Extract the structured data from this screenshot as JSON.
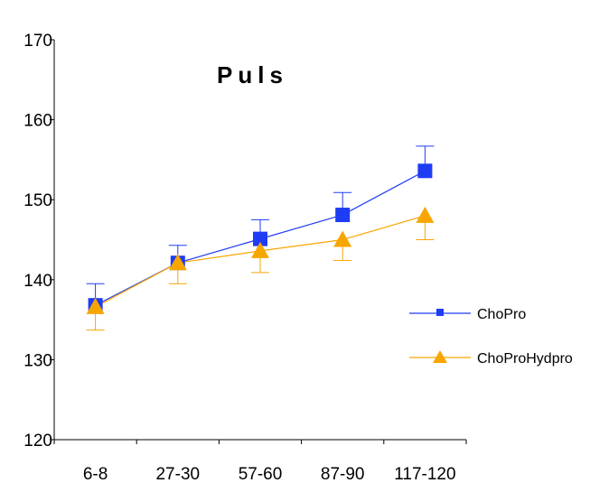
{
  "chart_data": {
    "type": "line",
    "title": "Puls",
    "xlabel": "",
    "ylabel": "",
    "categories": [
      "6-8",
      "27-30",
      "57-60",
      "87-90",
      "117-120"
    ],
    "ylim": [
      120,
      170
    ],
    "yticks": [
      120,
      130,
      140,
      150,
      160,
      170
    ],
    "grid": false,
    "legend_position": "right",
    "series": [
      {
        "name": "ChoPro",
        "marker": "square",
        "color": "#1f3cf5",
        "values": [
          136.8,
          142.1,
          145.1,
          148.1,
          153.6
        ],
        "error_upper": [
          2.7,
          2.2,
          2.4,
          2.8,
          3.1
        ]
      },
      {
        "name": "ChoProHydpro",
        "marker": "triangle",
        "color": "#f7a600",
        "values": [
          136.6,
          142.1,
          143.6,
          145.0,
          148.0
        ],
        "error_lower": [
          2.9,
          2.6,
          2.7,
          2.6,
          3.0
        ]
      }
    ]
  }
}
